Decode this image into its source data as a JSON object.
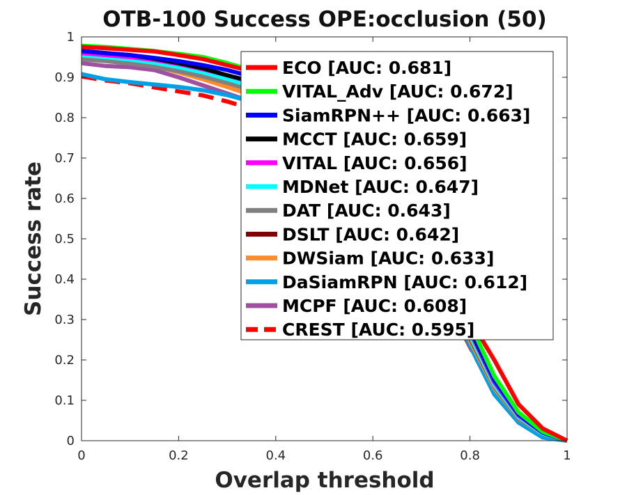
{
  "chart_data": {
    "type": "line",
    "title": "OTB-100 Success OPE:occlusion (50)",
    "xlabel": "Overlap threshold",
    "ylabel": "Success rate",
    "xlim": [
      0,
      1
    ],
    "ylim": [
      0,
      1
    ],
    "xticks": [
      "0",
      "0.2",
      "0.4",
      "0.6",
      "0.8",
      "1"
    ],
    "yticks": [
      "0",
      "0.1",
      "0.2",
      "0.3",
      "0.4",
      "0.5",
      "0.6",
      "0.7",
      "0.8",
      "0.9",
      "1"
    ],
    "grid": false,
    "legend_position": "top-right",
    "x": [
      0,
      0.05,
      0.1,
      0.15,
      0.2,
      0.25,
      0.3,
      0.35,
      0.4,
      0.45,
      0.5,
      0.55,
      0.6,
      0.65,
      0.7,
      0.75,
      0.8,
      0.85,
      0.9,
      0.95,
      1
    ],
    "series": [
      {
        "name": "ECO [AUC: 0.681]",
        "color": "#ff0000",
        "dash": false,
        "values": [
          0.975,
          0.972,
          0.968,
          0.964,
          0.955,
          0.945,
          0.93,
          0.915,
          0.895,
          0.87,
          0.84,
          0.795,
          0.735,
          0.655,
          0.555,
          0.44,
          0.3,
          0.2,
          0.09,
          0.03,
          0.0
        ]
      },
      {
        "name": "VITAL_Adv [AUC: 0.672]",
        "color": "#00ff00",
        "dash": false,
        "values": [
          0.978,
          0.975,
          0.97,
          0.965,
          0.958,
          0.95,
          0.935,
          0.918,
          0.895,
          0.866,
          0.832,
          0.785,
          0.725,
          0.645,
          0.545,
          0.43,
          0.29,
          0.16,
          0.07,
          0.022,
          0.0
        ]
      },
      {
        "name": "SiamRPN++ [AUC: 0.663]",
        "color": "#0000ff",
        "dash": false,
        "values": [
          0.965,
          0.96,
          0.955,
          0.948,
          0.94,
          0.93,
          0.918,
          0.902,
          0.88,
          0.85,
          0.815,
          0.765,
          0.705,
          0.625,
          0.525,
          0.41,
          0.28,
          0.15,
          0.065,
          0.02,
          0.0
        ]
      },
      {
        "name": "MCCT [AUC: 0.659]",
        "color": "#000000",
        "dash": false,
        "values": [
          0.965,
          0.96,
          0.955,
          0.946,
          0.935,
          0.922,
          0.905,
          0.89,
          0.868,
          0.84,
          0.805,
          0.758,
          0.698,
          0.62,
          0.52,
          0.405,
          0.275,
          0.15,
          0.065,
          0.02,
          0.0
        ]
      },
      {
        "name": "VITAL [AUC: 0.656]",
        "color": "#ff00ff",
        "dash": false,
        "values": [
          0.96,
          0.955,
          0.95,
          0.943,
          0.933,
          0.92,
          0.905,
          0.888,
          0.866,
          0.838,
          0.802,
          0.755,
          0.695,
          0.615,
          0.515,
          0.4,
          0.27,
          0.145,
          0.062,
          0.02,
          0.0
        ]
      },
      {
        "name": "MDNet [AUC: 0.647]",
        "color": "#00ffff",
        "dash": false,
        "values": [
          0.955,
          0.95,
          0.944,
          0.936,
          0.925,
          0.912,
          0.896,
          0.878,
          0.855,
          0.826,
          0.79,
          0.742,
          0.682,
          0.602,
          0.502,
          0.388,
          0.26,
          0.138,
          0.058,
          0.018,
          0.0
        ]
      },
      {
        "name": "DAT [AUC: 0.643]",
        "color": "#808080",
        "dash": false,
        "values": [
          0.945,
          0.94,
          0.934,
          0.926,
          0.915,
          0.902,
          0.886,
          0.868,
          0.846,
          0.818,
          0.782,
          0.735,
          0.675,
          0.596,
          0.497,
          0.383,
          0.258,
          0.136,
          0.057,
          0.018,
          0.0
        ]
      },
      {
        "name": "DSLT [AUC: 0.642]",
        "color": "#800000",
        "dash": false,
        "values": [
          0.965,
          0.955,
          0.945,
          0.935,
          0.922,
          0.908,
          0.89,
          0.872,
          0.848,
          0.82,
          0.784,
          0.736,
          0.675,
          0.594,
          0.494,
          0.38,
          0.255,
          0.135,
          0.056,
          0.018,
          0.0
        ]
      },
      {
        "name": "DWSiam [AUC: 0.633]",
        "color": "#ff8c28",
        "dash": false,
        "values": [
          0.95,
          0.945,
          0.938,
          0.928,
          0.912,
          0.895,
          0.876,
          0.856,
          0.833,
          0.805,
          0.77,
          0.722,
          0.662,
          0.583,
          0.484,
          0.37,
          0.247,
          0.13,
          0.054,
          0.017,
          0.0
        ]
      },
      {
        "name": "DaSiamRPN [AUC: 0.612]",
        "color": "#00a0e6",
        "dash": false,
        "values": [
          0.908,
          0.895,
          0.888,
          0.882,
          0.876,
          0.868,
          0.856,
          0.84,
          0.818,
          0.79,
          0.755,
          0.708,
          0.648,
          0.57,
          0.472,
          0.358,
          0.235,
          0.115,
          0.045,
          0.008,
          0.0
        ]
      },
      {
        "name": "MCPF [AUC: 0.608]",
        "color": "#a050a0",
        "dash": false,
        "values": [
          0.935,
          0.928,
          0.925,
          0.918,
          0.9,
          0.88,
          0.86,
          0.84,
          0.818,
          0.79,
          0.755,
          0.708,
          0.648,
          0.57,
          0.472,
          0.36,
          0.24,
          0.13,
          0.06,
          0.022,
          0.0
        ]
      },
      {
        "name": "CREST [AUC: 0.595]",
        "color": "#ff0000",
        "dash": true,
        "values": [
          0.902,
          0.892,
          0.885,
          0.875,
          0.865,
          0.855,
          0.84,
          0.822,
          0.8,
          0.772,
          0.738,
          0.692,
          0.634,
          0.558,
          0.462,
          0.35,
          0.232,
          0.12,
          0.05,
          0.012,
          0.0
        ]
      }
    ]
  }
}
